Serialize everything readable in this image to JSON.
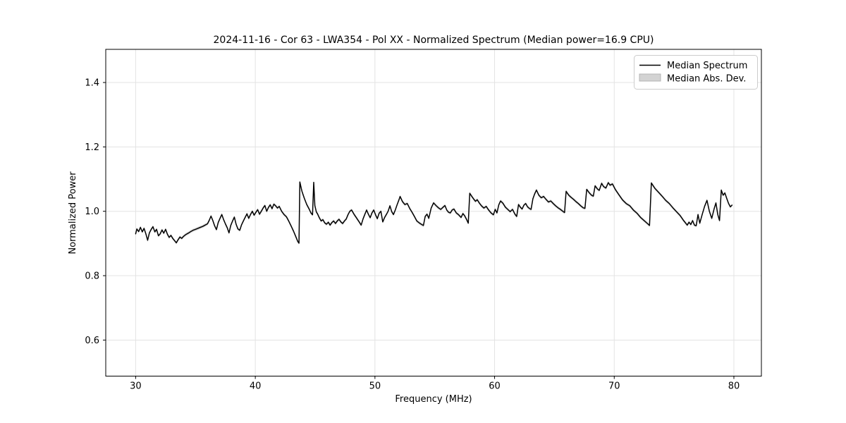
{
  "chart": {
    "title": "2024-11-16 - Cor 63 - LWA354 - Pol XX - Normalized Spectrum (Median power=16.9 CPU)",
    "xlabel": "Frequency (MHz)",
    "ylabel": "Normalized Power",
    "legend": {
      "items": [
        {
          "label": "Median Spectrum",
          "type": "line",
          "color": "#000000"
        },
        {
          "label": "Median Abs. Dev.",
          "type": "patch",
          "color": "#d3d3d3"
        }
      ]
    }
  },
  "chart_data": {
    "type": "line",
    "title": "2024-11-16 - Cor 63 - LWA354 - Pol XX - Normalized Spectrum (Median power=16.9 CPU)",
    "xlabel": "Frequency (MHz)",
    "ylabel": "Normalized Power",
    "xlim": [
      27.5,
      82.3
    ],
    "ylim": [
      0.488,
      1.503
    ],
    "x_ticks": [
      30,
      40,
      50,
      60,
      70,
      80
    ],
    "x_tick_labels": [
      "30",
      "40",
      "50",
      "60",
      "70",
      "80"
    ],
    "y_ticks": [
      0.6,
      0.8,
      1.0,
      1.2,
      1.4
    ],
    "y_tick_labels": [
      "0.6",
      "0.8",
      "1.0",
      "1.2",
      "1.4"
    ],
    "grid": true,
    "legend_position": "upper right",
    "line_color": "#000000",
    "band_color": "#bfbfbf",
    "band_halfwidth": 0.005,
    "series": [
      {
        "name": "Median Spectrum",
        "points": [
          [
            30.0,
            0.93
          ],
          [
            30.1,
            0.945
          ],
          [
            30.25,
            0.937
          ],
          [
            30.4,
            0.95
          ],
          [
            30.55,
            0.936
          ],
          [
            30.7,
            0.947
          ],
          [
            30.85,
            0.93
          ],
          [
            31.0,
            0.91
          ],
          [
            31.15,
            0.933
          ],
          [
            31.3,
            0.944
          ],
          [
            31.45,
            0.952
          ],
          [
            31.6,
            0.936
          ],
          [
            31.75,
            0.944
          ],
          [
            31.9,
            0.924
          ],
          [
            32.05,
            0.93
          ],
          [
            32.2,
            0.942
          ],
          [
            32.35,
            0.932
          ],
          [
            32.5,
            0.944
          ],
          [
            32.65,
            0.929
          ],
          [
            32.8,
            0.919
          ],
          [
            32.95,
            0.925
          ],
          [
            33.1,
            0.916
          ],
          [
            33.25,
            0.909
          ],
          [
            33.4,
            0.902
          ],
          [
            33.55,
            0.912
          ],
          [
            33.7,
            0.92
          ],
          [
            33.85,
            0.916
          ],
          [
            34.0,
            0.922
          ],
          [
            34.2,
            0.928
          ],
          [
            34.4,
            0.932
          ],
          [
            34.6,
            0.937
          ],
          [
            34.8,
            0.941
          ],
          [
            35.0,
            0.944
          ],
          [
            35.2,
            0.947
          ],
          [
            35.4,
            0.95
          ],
          [
            35.6,
            0.953
          ],
          [
            35.8,
            0.957
          ],
          [
            36.0,
            0.961
          ],
          [
            36.15,
            0.972
          ],
          [
            36.3,
            0.985
          ],
          [
            36.45,
            0.971
          ],
          [
            36.6,
            0.955
          ],
          [
            36.75,
            0.943
          ],
          [
            36.9,
            0.965
          ],
          [
            37.05,
            0.978
          ],
          [
            37.2,
            0.99
          ],
          [
            37.35,
            0.974
          ],
          [
            37.5,
            0.961
          ],
          [
            37.65,
            0.949
          ],
          [
            37.8,
            0.933
          ],
          [
            37.95,
            0.956
          ],
          [
            38.1,
            0.97
          ],
          [
            38.25,
            0.982
          ],
          [
            38.4,
            0.959
          ],
          [
            38.55,
            0.945
          ],
          [
            38.7,
            0.941
          ],
          [
            38.85,
            0.958
          ],
          [
            39.0,
            0.97
          ],
          [
            39.15,
            0.981
          ],
          [
            39.3,
            0.992
          ],
          [
            39.45,
            0.978
          ],
          [
            39.6,
            0.99
          ],
          [
            39.75,
            1.0
          ],
          [
            39.9,
            0.988
          ],
          [
            40.05,
            0.997
          ],
          [
            40.2,
            1.005
          ],
          [
            40.35,
            0.991
          ],
          [
            40.5,
            1.0
          ],
          [
            40.65,
            1.01
          ],
          [
            40.8,
            1.018
          ],
          [
            40.95,
            1.0
          ],
          [
            41.1,
            1.012
          ],
          [
            41.25,
            1.02
          ],
          [
            41.4,
            1.008
          ],
          [
            41.55,
            1.022
          ],
          [
            41.7,
            1.017
          ],
          [
            41.85,
            1.01
          ],
          [
            42.0,
            1.015
          ],
          [
            42.2,
            1.0
          ],
          [
            42.4,
            0.99
          ],
          [
            42.6,
            0.983
          ],
          [
            42.8,
            0.969
          ],
          [
            43.0,
            0.954
          ],
          [
            43.2,
            0.938
          ],
          [
            43.4,
            0.92
          ],
          [
            43.55,
            0.906
          ],
          [
            43.65,
            0.901
          ],
          [
            43.72,
            1.091
          ],
          [
            43.9,
            1.062
          ],
          [
            44.1,
            1.04
          ],
          [
            44.3,
            1.021
          ],
          [
            44.5,
            1.007
          ],
          [
            44.65,
            0.995
          ],
          [
            44.78,
            0.989
          ],
          [
            44.88,
            1.09
          ],
          [
            44.98,
            1.018
          ],
          [
            45.1,
            0.998
          ],
          [
            45.2,
            0.992
          ],
          [
            45.35,
            0.98
          ],
          [
            45.5,
            0.97
          ],
          [
            45.65,
            0.974
          ],
          [
            45.8,
            0.964
          ],
          [
            45.95,
            0.96
          ],
          [
            46.1,
            0.966
          ],
          [
            46.25,
            0.957
          ],
          [
            46.4,
            0.965
          ],
          [
            46.55,
            0.97
          ],
          [
            46.7,
            0.962
          ],
          [
            46.85,
            0.97
          ],
          [
            47.0,
            0.975
          ],
          [
            47.15,
            0.967
          ],
          [
            47.3,
            0.962
          ],
          [
            47.45,
            0.97
          ],
          [
            47.6,
            0.976
          ],
          [
            47.75,
            0.99
          ],
          [
            47.9,
            1.0
          ],
          [
            48.05,
            1.004
          ],
          [
            48.25,
            0.991
          ],
          [
            48.45,
            0.98
          ],
          [
            48.65,
            0.969
          ],
          [
            48.85,
            0.957
          ],
          [
            49.0,
            0.976
          ],
          [
            49.15,
            0.99
          ],
          [
            49.3,
            1.004
          ],
          [
            49.45,
            0.991
          ],
          [
            49.6,
            0.98
          ],
          [
            49.75,
            0.995
          ],
          [
            49.9,
            1.004
          ],
          [
            50.05,
            0.989
          ],
          [
            50.2,
            0.977
          ],
          [
            50.35,
            0.994
          ],
          [
            50.5,
            1.0
          ],
          [
            50.65,
            0.967
          ],
          [
            50.8,
            0.98
          ],
          [
            50.95,
            0.99
          ],
          [
            51.1,
            1.0
          ],
          [
            51.25,
            1.017
          ],
          [
            51.4,
            0.999
          ],
          [
            51.55,
            0.99
          ],
          [
            51.7,
            1.004
          ],
          [
            51.85,
            1.02
          ],
          [
            52.0,
            1.035
          ],
          [
            52.1,
            1.046
          ],
          [
            52.3,
            1.03
          ],
          [
            52.5,
            1.021
          ],
          [
            52.7,
            1.024
          ],
          [
            52.9,
            1.009
          ],
          [
            53.1,
            0.997
          ],
          [
            53.3,
            0.984
          ],
          [
            53.5,
            0.97
          ],
          [
            53.7,
            0.964
          ],
          [
            53.9,
            0.959
          ],
          [
            54.05,
            0.956
          ],
          [
            54.2,
            0.984
          ],
          [
            54.35,
            0.991
          ],
          [
            54.5,
            0.978
          ],
          [
            54.7,
            1.01
          ],
          [
            54.9,
            1.026
          ],
          [
            55.1,
            1.018
          ],
          [
            55.3,
            1.011
          ],
          [
            55.5,
            1.006
          ],
          [
            55.7,
            1.013
          ],
          [
            55.85,
            1.018
          ],
          [
            56.0,
            1.004
          ],
          [
            56.15,
            0.997
          ],
          [
            56.3,
            0.995
          ],
          [
            56.45,
            1.004
          ],
          [
            56.6,
            1.007
          ],
          [
            56.8,
            0.995
          ],
          [
            57.0,
            0.989
          ],
          [
            57.2,
            0.981
          ],
          [
            57.35,
            0.993
          ],
          [
            57.5,
            0.986
          ],
          [
            57.65,
            0.975
          ],
          [
            57.8,
            0.963
          ],
          [
            57.92,
            1.056
          ],
          [
            58.1,
            1.046
          ],
          [
            58.25,
            1.038
          ],
          [
            58.4,
            1.031
          ],
          [
            58.55,
            1.036
          ],
          [
            58.7,
            1.027
          ],
          [
            58.9,
            1.017
          ],
          [
            59.1,
            1.01
          ],
          [
            59.3,
            1.015
          ],
          [
            59.5,
            1.004
          ],
          [
            59.7,
            0.995
          ],
          [
            59.9,
            0.989
          ],
          [
            60.05,
            1.006
          ],
          [
            60.2,
            0.995
          ],
          [
            60.35,
            1.02
          ],
          [
            60.5,
            1.032
          ],
          [
            60.7,
            1.025
          ],
          [
            60.9,
            1.013
          ],
          [
            61.1,
            1.006
          ],
          [
            61.3,
            0.999
          ],
          [
            61.5,
            1.006
          ],
          [
            61.7,
            0.991
          ],
          [
            61.85,
            0.984
          ],
          [
            62.0,
            1.021
          ],
          [
            62.15,
            1.013
          ],
          [
            62.3,
            1.007
          ],
          [
            62.45,
            1.019
          ],
          [
            62.6,
            1.024
          ],
          [
            62.75,
            1.014
          ],
          [
            62.9,
            1.009
          ],
          [
            63.05,
            1.006
          ],
          [
            63.2,
            1.039
          ],
          [
            63.35,
            1.054
          ],
          [
            63.5,
            1.066
          ],
          [
            63.7,
            1.05
          ],
          [
            63.9,
            1.042
          ],
          [
            64.1,
            1.046
          ],
          [
            64.3,
            1.037
          ],
          [
            64.5,
            1.029
          ],
          [
            64.7,
            1.032
          ],
          [
            64.9,
            1.024
          ],
          [
            65.1,
            1.017
          ],
          [
            65.3,
            1.011
          ],
          [
            65.5,
            1.006
          ],
          [
            65.7,
            1.0
          ],
          [
            65.85,
            0.996
          ],
          [
            65.98,
            1.062
          ],
          [
            66.2,
            1.05
          ],
          [
            66.4,
            1.043
          ],
          [
            66.6,
            1.037
          ],
          [
            66.8,
            1.03
          ],
          [
            67.0,
            1.024
          ],
          [
            67.2,
            1.017
          ],
          [
            67.4,
            1.011
          ],
          [
            67.55,
            1.009
          ],
          [
            67.7,
            1.068
          ],
          [
            67.9,
            1.058
          ],
          [
            68.1,
            1.05
          ],
          [
            68.25,
            1.047
          ],
          [
            68.4,
            1.079
          ],
          [
            68.6,
            1.069
          ],
          [
            68.75,
            1.065
          ],
          [
            68.95,
            1.087
          ],
          [
            69.1,
            1.077
          ],
          [
            69.3,
            1.072
          ],
          [
            69.5,
            1.089
          ],
          [
            69.65,
            1.081
          ],
          [
            69.85,
            1.085
          ],
          [
            70.1,
            1.067
          ],
          [
            70.4,
            1.051
          ],
          [
            70.7,
            1.035
          ],
          [
            71.0,
            1.024
          ],
          [
            71.3,
            1.017
          ],
          [
            71.6,
            1.004
          ],
          [
            71.9,
            0.994
          ],
          [
            72.2,
            0.981
          ],
          [
            72.5,
            0.971
          ],
          [
            72.8,
            0.961
          ],
          [
            72.95,
            0.956
          ],
          [
            73.1,
            1.088
          ],
          [
            73.4,
            1.071
          ],
          [
            73.7,
            1.059
          ],
          [
            74.0,
            1.047
          ],
          [
            74.3,
            1.034
          ],
          [
            74.6,
            1.024
          ],
          [
            74.9,
            1.011
          ],
          [
            75.2,
            0.999
          ],
          [
            75.5,
            0.987
          ],
          [
            75.8,
            0.971
          ],
          [
            76.1,
            0.957
          ],
          [
            76.25,
            0.966
          ],
          [
            76.4,
            0.959
          ],
          [
            76.55,
            0.971
          ],
          [
            76.7,
            0.957
          ],
          [
            76.85,
            0.955
          ],
          [
            77.0,
            0.99
          ],
          [
            77.15,
            0.963
          ],
          [
            77.35,
            0.99
          ],
          [
            77.55,
            1.015
          ],
          [
            77.75,
            1.034
          ],
          [
            77.95,
            1.0
          ],
          [
            78.15,
            0.978
          ],
          [
            78.35,
            1.008
          ],
          [
            78.5,
            1.026
          ],
          [
            78.65,
            0.99
          ],
          [
            78.8,
            0.971
          ],
          [
            78.95,
            1.066
          ],
          [
            79.1,
            1.05
          ],
          [
            79.25,
            1.057
          ],
          [
            79.4,
            1.04
          ],
          [
            79.55,
            1.025
          ],
          [
            79.7,
            1.014
          ],
          [
            79.85,
            1.019
          ]
        ]
      }
    ]
  }
}
